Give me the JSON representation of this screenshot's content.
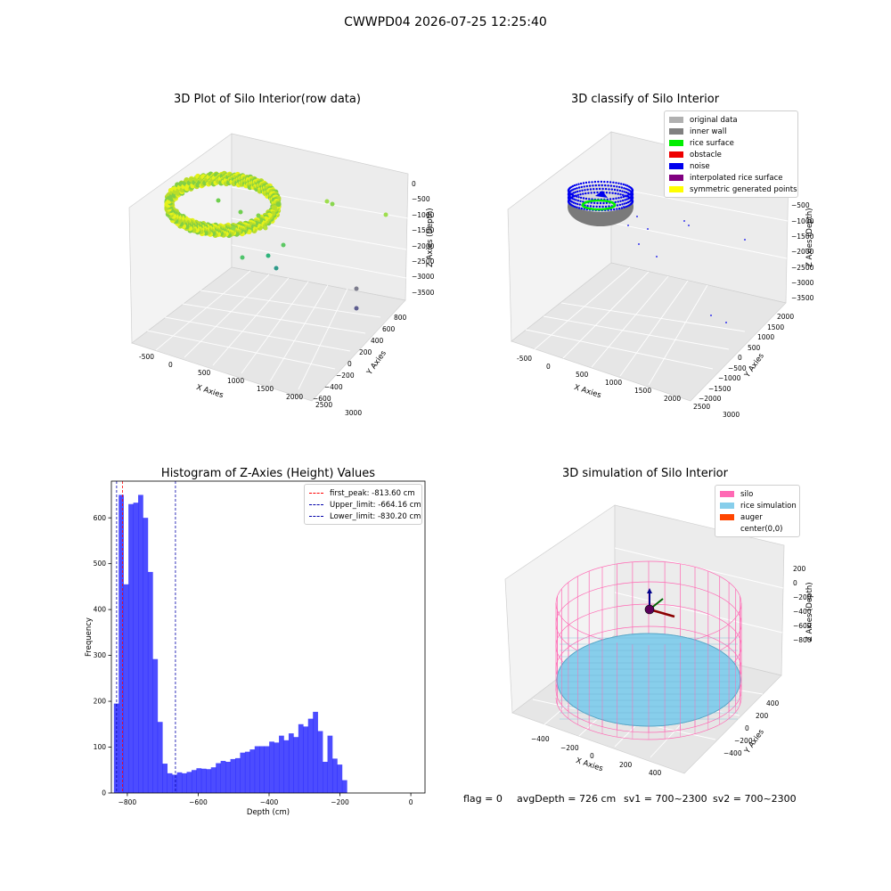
{
  "figure_title": "CWWPD04 2026-07-25 12:25:40",
  "panels": {
    "raw": {
      "title": "3D Plot of Silo Interior(row data)",
      "xlabel": "X Axies",
      "ylabel": "Y Axies",
      "zlabel": "Z Axies (Depth)",
      "xticks": [
        "-500",
        "0",
        "500",
        "1000",
        "1500",
        "2000",
        "2500",
        "3000"
      ],
      "yticks": [
        "800",
        "600",
        "400",
        "200",
        "0",
        "−200",
        "−400",
        "−600"
      ],
      "zticks": [
        "0",
        "−500",
        "−1000",
        "−1500",
        "−2000",
        "−2500",
        "−3000",
        "−3500"
      ]
    },
    "classify": {
      "title": "3D classify of Silo Interior",
      "xlabel": "X Axies",
      "ylabel": "Y Axies",
      "zlabel": "Z Axies (Depth)",
      "xticks": [
        "-500",
        "0",
        "500",
        "1000",
        "1500",
        "2000",
        "2500",
        "3000"
      ],
      "yticks": [
        "2000",
        "1500",
        "1000",
        "500",
        "0",
        "−500",
        "−1000",
        "−1500",
        "−2000"
      ],
      "zticks": [
        "0",
        "−500",
        "−1000",
        "−1500",
        "−2000",
        "−2500",
        "−3000",
        "−3500"
      ],
      "legend": [
        {
          "label": "original data",
          "color": "#b0b0b0"
        },
        {
          "label": "inner wall",
          "color": "#808080"
        },
        {
          "label": "rice surface",
          "color": "#00ee00"
        },
        {
          "label": "obstacle",
          "color": "#ee0000"
        },
        {
          "label": "noise",
          "color": "#0000ee"
        },
        {
          "label": "interpolated rice surface",
          "color": "#800080"
        },
        {
          "label": "symmetric generated points",
          "color": "#ffff00"
        }
      ]
    },
    "simulation": {
      "title": "3D simulation of Silo Interior",
      "xlabel": "X Axies",
      "ylabel": "Y Axies",
      "zlabel": "Z Axies (Depth)",
      "xticks": [
        "−400",
        "−200",
        "0",
        "200",
        "400"
      ],
      "yticks": [
        "400",
        "200",
        "0",
        "−200",
        "−400"
      ],
      "zticks": [
        "200",
        "0",
        "−200",
        "−400",
        "−600",
        "−800"
      ],
      "legend": [
        {
          "label": "silo",
          "color": "#ff69b4"
        },
        {
          "label": "rice simulation",
          "color": "#87ceeb"
        },
        {
          "label": "auger",
          "color": "#ff4500"
        },
        {
          "label": "center(0,0)",
          "color": ""
        }
      ]
    }
  },
  "chart_data": {
    "type": "bar",
    "title": "Histogram of Z-Axies (Height) Values",
    "xlabel": "Depth (cm)",
    "ylabel": "Frequency",
    "xlim": [
      -845,
      40
    ],
    "ylim": [
      0,
      680
    ],
    "xticks": [
      "−800",
      "−600",
      "−400",
      "−200",
      "0"
    ],
    "xtick_values": [
      -800,
      -600,
      -400,
      -200,
      0
    ],
    "yticks": [
      "0",
      "100",
      "200",
      "300",
      "400",
      "500",
      "600"
    ],
    "ytick_values": [
      0,
      100,
      200,
      300,
      400,
      500,
      600
    ],
    "bar_color": "#0000ff",
    "bin_start": -838,
    "bin_width": 13.7,
    "values": [
      195,
      650,
      455,
      630,
      633,
      650,
      600,
      482,
      292,
      155,
      64,
      43,
      40,
      45,
      43,
      46,
      50,
      54,
      53,
      52,
      56,
      65,
      70,
      68,
      74,
      76,
      88,
      90,
      95,
      102,
      102,
      102,
      112,
      110,
      125,
      115,
      130,
      122,
      150,
      145,
      162,
      177,
      135,
      68,
      125,
      75,
      62,
      28
    ],
    "lines": [
      {
        "name": "first_peak",
        "value": -813.6,
        "label": "first_peak: -813.60 cm",
        "color": "#ff0000"
      },
      {
        "name": "upper_limit",
        "value": -664.16,
        "label": "Upper_limit: -664.16 cm",
        "color": "#0000aa"
      },
      {
        "name": "lower_limit",
        "value": -830.2,
        "label": "Lower_limit: -830.20 cm",
        "color": "#0000aa"
      }
    ]
  },
  "status": {
    "flag": "flag = 0",
    "avg_depth": "avgDepth = 726 cm",
    "sv1": "sv1 = 700~2300",
    "sv2": "sv2 = 700~2300"
  }
}
